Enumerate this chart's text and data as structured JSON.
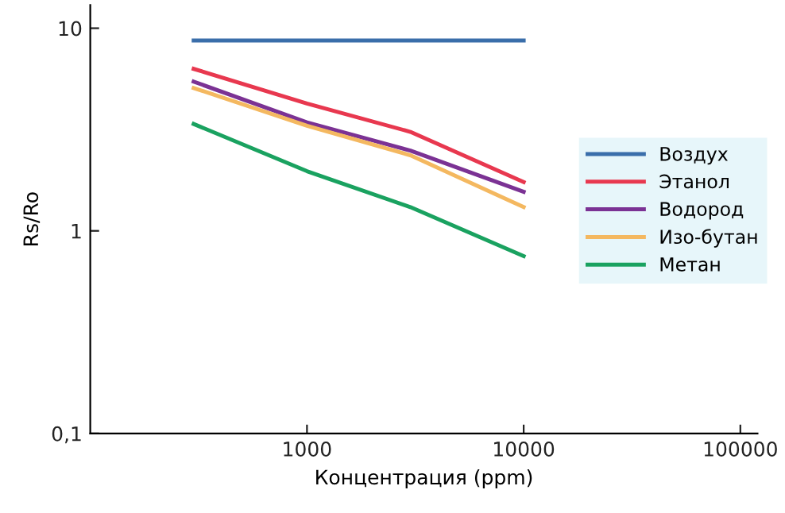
{
  "chart_data": {
    "type": "line",
    "xlabel": "Концентрация (ppm)",
    "ylabel": "Rs/Ro",
    "x": [
      300,
      1000,
      3000,
      10000
    ],
    "series": [
      {
        "name": "Воздух",
        "color": "#3a6eaa",
        "values": [
          8.7,
          8.7,
          8.7,
          8.7
        ]
      },
      {
        "name": "Этанол",
        "color": "#e8384f",
        "values": [
          6.3,
          4.25,
          3.08,
          1.74
        ]
      },
      {
        "name": "Водород",
        "color": "#7b3294",
        "values": [
          5.45,
          3.43,
          2.49,
          1.56
        ]
      },
      {
        "name": "Изо-бутан",
        "color": "#f4b860",
        "values": [
          5.07,
          3.3,
          2.36,
          1.31
        ]
      },
      {
        "name": "Метан",
        "color": "#1aa260",
        "values": [
          3.37,
          1.97,
          1.31,
          0.75
        ]
      }
    ],
    "log": "xy",
    "xlim": [
      100,
      120000
    ],
    "ylim": [
      0.1,
      13
    ],
    "xticks": [
      1000,
      10000,
      100000
    ],
    "yticks": [
      {
        "value": 0.1,
        "label": "0,1"
      },
      1,
      10
    ],
    "grid": false,
    "legend": "right",
    "marker": "none",
    "line_style": "solid"
  }
}
